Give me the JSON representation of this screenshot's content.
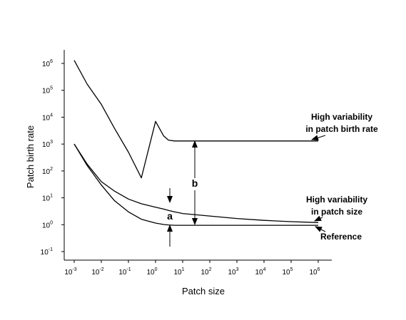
{
  "chart_data": {
    "type": "line",
    "title": "",
    "xlabel": "Patch size",
    "ylabel": "Patch birth rate",
    "x_scale": "log",
    "y_scale": "log",
    "xlim": [
      0.001,
      1000000
    ],
    "ylim": [
      0.1,
      1000000
    ],
    "grid": false,
    "x_ticks": [
      {
        "base": "10",
        "exp": "-3"
      },
      {
        "base": "10",
        "exp": "-2"
      },
      {
        "base": "10",
        "exp": "-1"
      },
      {
        "base": "10",
        "exp": "0"
      },
      {
        "base": "10",
        "exp": "1"
      },
      {
        "base": "10",
        "exp": "2"
      },
      {
        "base": "10",
        "exp": "3"
      },
      {
        "base": "10",
        "exp": "4"
      },
      {
        "base": "10",
        "exp": "5"
      },
      {
        "base": "10",
        "exp": "6"
      }
    ],
    "y_ticks": [
      {
        "base": "10",
        "exp": "-1"
      },
      {
        "base": "10",
        "exp": "0"
      },
      {
        "base": "10",
        "exp": "1"
      },
      {
        "base": "10",
        "exp": "2"
      },
      {
        "base": "10",
        "exp": "3"
      },
      {
        "base": "10",
        "exp": "4"
      },
      {
        "base": "10",
        "exp": "5"
      },
      {
        "base": "10",
        "exp": "6"
      }
    ],
    "series": [
      {
        "x": [
          0.001,
          0.003,
          0.01,
          0.03,
          0.1,
          0.3,
          1,
          2,
          3,
          5,
          10,
          100,
          1000,
          10000,
          100000,
          1000000
        ],
        "y": [
          1300000,
          170000,
          30000,
          4000,
          500,
          55,
          7000,
          2000,
          1400,
          1300,
          1300,
          1300,
          1300,
          1300,
          1300,
          1300
        ]
      },
      {
        "x": [
          0.001,
          0.003,
          0.01,
          0.03,
          0.1,
          0.3,
          1,
          2,
          3,
          5,
          10,
          100,
          1000,
          10000,
          100000,
          1000000
        ],
        "y": [
          1000,
          180,
          40,
          18,
          9,
          6,
          4.5,
          3.8,
          3.4,
          3.0,
          2.6,
          2.1,
          1.7,
          1.45,
          1.3,
          1.2
        ]
      },
      {
        "x": [
          0.001,
          0.003,
          0.01,
          0.03,
          0.1,
          0.3,
          1,
          2,
          3,
          5,
          10,
          100,
          1000,
          10000,
          100000,
          1000000
        ],
        "y": [
          1000,
          160,
          30,
          8,
          3,
          1.6,
          1.15,
          1.02,
          0.98,
          0.95,
          0.95,
          0.95,
          0.95,
          0.95,
          0.95,
          0.95
        ]
      }
    ],
    "annotations": [
      {
        "lines": [
          "High variability",
          "in patch birth rate"
        ]
      },
      {
        "lines": [
          "High variability",
          "in patch size"
        ]
      },
      {
        "lines": [
          "Reference"
        ]
      },
      {
        "text": "a"
      },
      {
        "text": "b"
      }
    ]
  }
}
